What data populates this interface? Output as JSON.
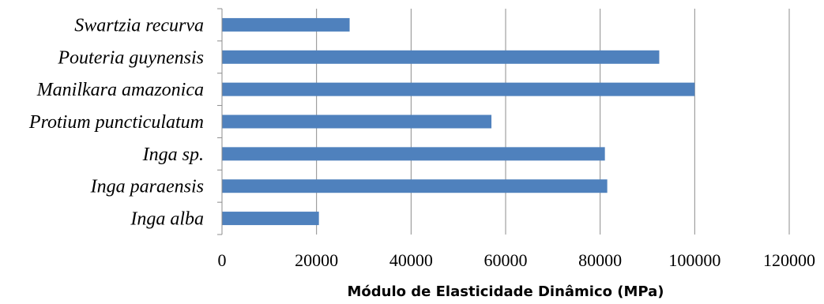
{
  "chart_data": {
    "type": "bar",
    "orientation": "horizontal",
    "categories": [
      "Swartzia recurva",
      "Pouteria guynensis",
      "Manilkara amazonica",
      "Protium puncticulatum",
      "Inga sp.",
      "Inga paraensis",
      "Inga alba"
    ],
    "values": [
      27000,
      92500,
      100000,
      57000,
      81000,
      81500,
      20500
    ],
    "title": "",
    "xlabel": "Módulo de Elasticidade Dinâmico (MPa)",
    "ylabel": "",
    "xlim": [
      0,
      120000
    ],
    "x_ticks": [
      "0",
      "20000",
      "40000",
      "60000",
      "80000",
      "100000",
      "120000"
    ],
    "x_tick_values": [
      0,
      20000,
      40000,
      60000,
      80000,
      100000,
      120000
    ],
    "grid": true,
    "legend": "none",
    "bar_color": "#4f81bd"
  }
}
